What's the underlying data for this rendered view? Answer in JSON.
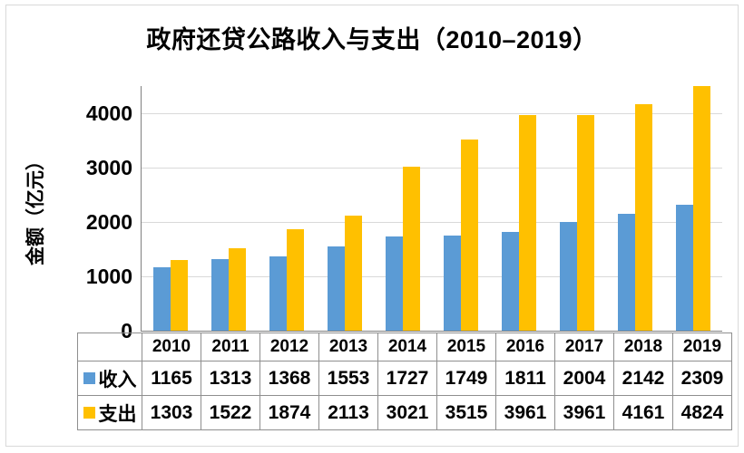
{
  "chart_data": {
    "type": "bar",
    "title": "政府还贷公路收入与支出（2010–2019）",
    "ylabel": "金额（亿元）",
    "xlabel": "",
    "categories": [
      "2010",
      "2011",
      "2012",
      "2013",
      "2014",
      "2015",
      "2016",
      "2017",
      "2018",
      "2019"
    ],
    "series": [
      {
        "name": "收入",
        "color": "#5B9BD5",
        "values": [
          1165,
          1313,
          1368,
          1553,
          1727,
          1749,
          1811,
          2004,
          2142,
          2309
        ]
      },
      {
        "name": "支出",
        "color": "#FFC000",
        "values": [
          1303,
          1522,
          1874,
          2113,
          3021,
          3515,
          3961,
          3961,
          4161,
          4824
        ]
      }
    ],
    "yticks": [
      0,
      1000,
      2000,
      3000,
      4000
    ],
    "ylim": [
      0,
      4500
    ],
    "grid": true,
    "gridline_color": "#D9D9D9",
    "axis_color": "#808080",
    "table_border_color": "#8F8F8F",
    "legend_position": "bottom-table"
  }
}
